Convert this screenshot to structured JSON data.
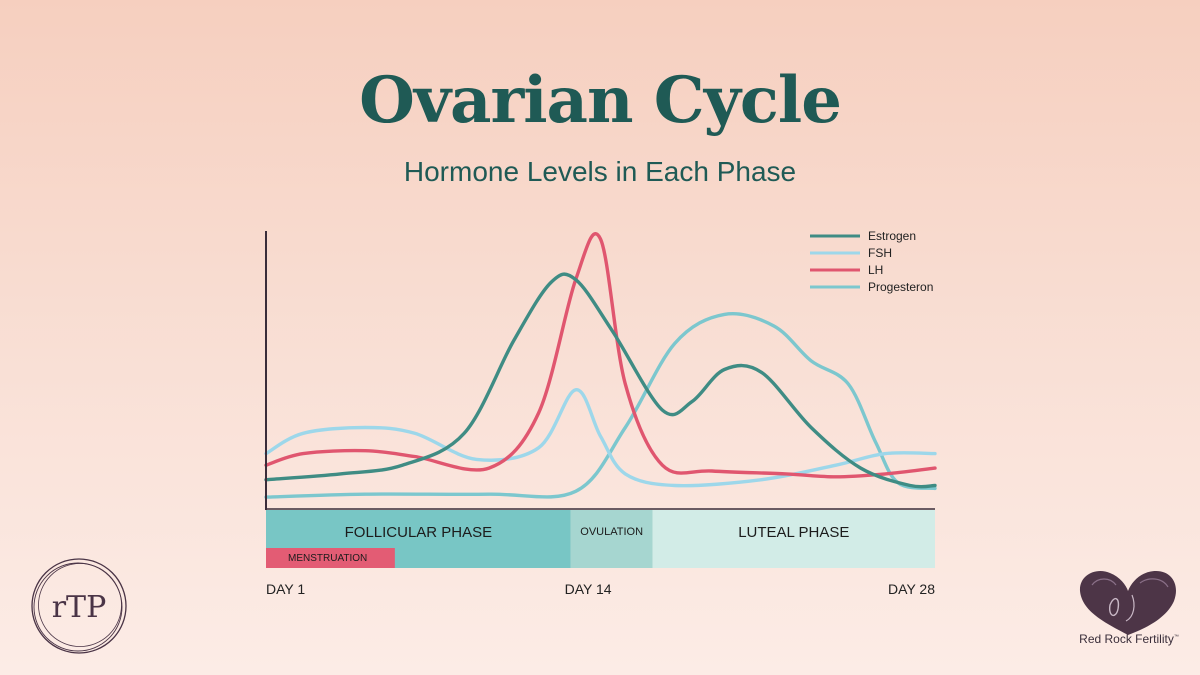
{
  "chart_data": {
    "type": "line",
    "title": "Ovarian Cycle",
    "subtitle": "Hormone Levels in Each Phase",
    "xlim": [
      1,
      28
    ],
    "ylim": [
      0,
      100
    ],
    "x_ticks": [
      {
        "day": 1,
        "label": "DAY 1"
      },
      {
        "day": 14,
        "label": "DAY 14"
      },
      {
        "day": 28,
        "label": "DAY 28"
      }
    ],
    "legend_position": "top-right",
    "series": [
      {
        "name": "Estrogen",
        "color": "#3f8c84",
        "x": [
          1,
          4,
          6.5,
          9,
          11,
          12.5,
          13.5,
          15,
          17,
          18.2,
          19.5,
          21,
          23,
          25,
          27,
          28
        ],
        "y": [
          7,
          9,
          12,
          23,
          55,
          75,
          76,
          58,
          31,
          34,
          45,
          44,
          25,
          11,
          5,
          5
        ]
      },
      {
        "name": "FSH",
        "color": "#9dd7ea",
        "x": [
          1,
          2.5,
          5,
          7,
          9.5,
          12,
          13.5,
          14.5,
          15.5,
          17.5,
          21,
          24,
          26,
          28
        ],
        "y": [
          16,
          23,
          25,
          23,
          14,
          18,
          38,
          22,
          9,
          5,
          7,
          12,
          16,
          16
        ]
      },
      {
        "name": "LH",
        "color": "#e0566f",
        "x": [
          1,
          2.5,
          5,
          7,
          10,
          12,
          13.5,
          14.5,
          15.5,
          17,
          19,
          22,
          24,
          26,
          28
        ],
        "y": [
          12,
          16,
          17,
          15,
          11,
          30,
          76,
          90,
          40,
          12,
          10,
          9,
          8,
          9,
          11
        ]
      },
      {
        "name": "Progesteron",
        "color": "#7cc7ce",
        "x": [
          1,
          5,
          10,
          13.5,
          15.5,
          17.5,
          19.5,
          21.5,
          23,
          24.5,
          25.6,
          26.5,
          28
        ],
        "y": [
          1,
          2,
          2,
          3,
          25,
          54,
          64,
          60,
          48,
          40,
          20,
          6,
          4
        ]
      }
    ],
    "phases": [
      {
        "label": "FOLLICULAR PHASE",
        "start_day": 1,
        "end_day": 13.3,
        "color": "#78c6c5"
      },
      {
        "label": "OVULATION",
        "start_day": 13.3,
        "end_day": 16.6,
        "color": "#a6d6d0"
      },
      {
        "label": "LUTEAL PHASE",
        "start_day": 16.6,
        "end_day": 28,
        "color": "#d2ece7"
      }
    ],
    "menstruation": {
      "label": "MENSTRUATION",
      "start_day": 1,
      "end_day": 6.2,
      "color": "#e35c74"
    }
  },
  "branding": {
    "left_logo_text": "rTP",
    "right_brand_name": "Red Rock Fertility",
    "right_brand_mark": "™"
  }
}
